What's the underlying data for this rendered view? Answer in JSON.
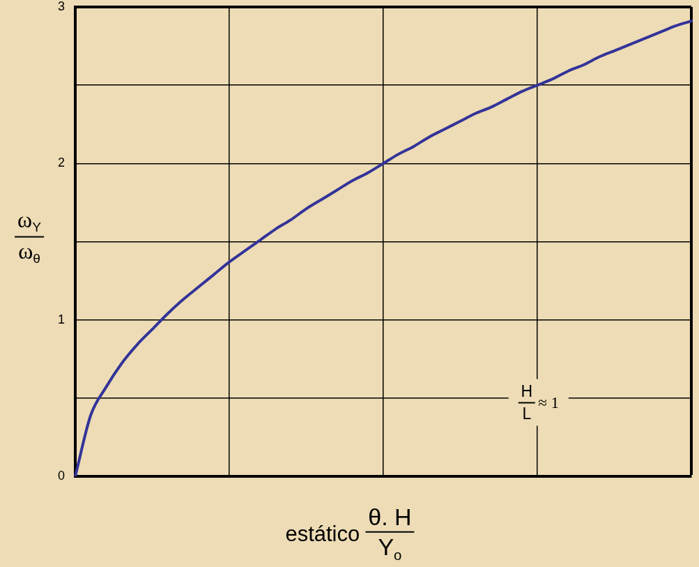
{
  "chart_data": {
    "type": "line",
    "xlabel": "estático θ. H\nY$_{o}$",
    "ylabel": "ω$_{Y}$\nω$_{θ}$",
    "annotations": [
      "H\nL ≈ 1"
    ],
    "categories": [
      null,
      null,
      null,
      null,
      null,
      null,
      null,
      null,
      null,
      null,
      null,
      null,
      null,
      null,
      null,
      null,
      null,
      null,
      null,
      null,
      null,
      null,
      null,
      null,
      null,
      null,
      null,
      null,
      null,
      null,
      null,
      null,
      null,
      null,
      null,
      null,
      null,
      null,
      null,
      null,
      null
    ],
    "series": [
      {
        "color": "#333399",
        "values": [
          0,
          0.39,
          0.57,
          0.72,
          0.84,
          0.94,
          1.04,
          1.13,
          1.21,
          1.29,
          1.37,
          1.44,
          1.51,
          1.58,
          1.64,
          1.71,
          1.77,
          1.83,
          1.89,
          1.94,
          2.0,
          2.06,
          2.11,
          2.17,
          2.22,
          2.27,
          2.32,
          2.36,
          2.41,
          2.46,
          2.5,
          2.54,
          2.59,
          2.63,
          2.68,
          2.72,
          2.76,
          2.8,
          2.84,
          2.88,
          2.91
        ]
      }
    ],
    "ylim": [
      0,
      3
    ],
    "yticks": [
      0,
      {
        "value": 0.5,
        "label": null
      },
      1,
      {
        "value": 1.5,
        "label": null
      },
      2,
      {
        "value": 2.5,
        "label": null
      },
      3
    ],
    "grid": true,
    "tick_labels": "y",
    "marker": "none",
    "line_style": "solid"
  }
}
